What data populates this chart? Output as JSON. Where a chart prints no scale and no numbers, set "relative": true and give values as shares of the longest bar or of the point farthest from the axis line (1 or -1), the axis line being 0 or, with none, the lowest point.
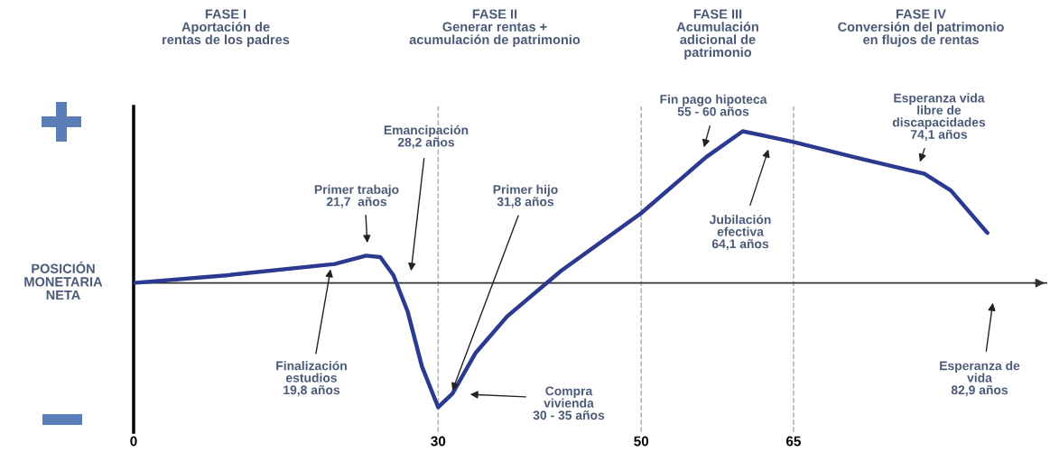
{
  "chart_data": {
    "type": "line",
    "relative": true,
    "ylabel": "POSICIÓN\nMONETARIA\nNETA",
    "xlim": [
      0,
      90
    ],
    "xticks": [
      0,
      30,
      50,
      65
    ],
    "x": [
      0,
      9.1,
      19.8,
      22.9,
      24.3,
      25.6,
      27,
      28.4,
      30,
      31.4,
      33.7,
      36.8,
      42.1,
      50,
      56.4,
      60,
      62.2,
      65,
      71.6,
      77.9,
      80.5,
      84.1
    ],
    "series": [
      {
        "color": "#2b3990",
        "values": [
          0,
          0.05,
          0.125,
          0.18,
          0.17,
          0.05,
          -0.19,
          -0.55,
          -0.82,
          -0.73,
          -0.46,
          -0.22,
          0.08,
          0.46,
          0.83,
          1.0,
          0.97,
          0.93,
          0.82,
          0.72,
          0.61,
          0.33
        ]
      }
    ],
    "line_style": "solid",
    "marker": "none",
    "grid": false,
    "ref_lines": [
      {
        "axis": "x",
        "value": 30,
        "color": "#b0b0b0",
        "line_style": "dashed"
      },
      {
        "axis": "x",
        "value": 50,
        "color": "#b0b0b0",
        "line_style": "dashed"
      },
      {
        "axis": "x",
        "value": 65,
        "color": "#b0b0b0",
        "line_style": "dashed"
      }
    ],
    "annotations": [
      "FASE I\nAportación de\nrentas de los padres",
      "FASE II\nGenerar rentas +\nacumulación de patrimonio",
      "FASE III\nAcumulación\nadicional de\npatrimonio",
      "FASE IV\nConversión del patrimonio\nen flujos de rentas",
      "Primer trabajo\n21,7  años",
      "Emancipación\n28,2 años",
      {
        "text": "Finalización\nestudios\n19,8 años",
        "x": 19.4,
        "y": 0.09
      },
      {
        "text": "Primer hijo\n31,8 años",
        "x": 31.4,
        "y": -0.71
      },
      "Compra\nvivienda\n30 - 35 años",
      "Fin pago hipoteca\n55 - 60 años",
      "Jubilación\nefectiva\n64,1 años",
      "Esperanza vida\nlibre de\ndiscapacidades\n74,1 años",
      "Esperanza de\nvida\n82,9 años"
    ]
  }
}
